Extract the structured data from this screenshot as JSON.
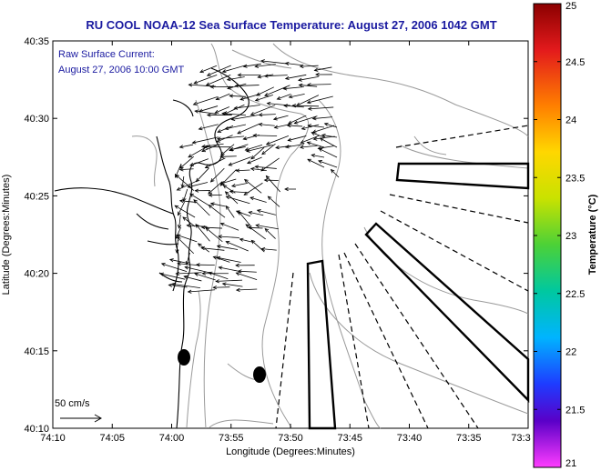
{
  "title": "RU COOL  NOAA-12  Sea Surface Temperature:  August 27, 2006 1042 GMT",
  "annotation": {
    "line1": "Raw Surface Current:",
    "line2": "August 27, 2006 10:00 GMT"
  },
  "scale": {
    "label": "50 cm/s"
  },
  "axes": {
    "xlabel": "Longitude (Degrees:Minutes)",
    "ylabel": "Latitude (Degrees:Minutes)",
    "xticks": [
      "74:10",
      "74:05",
      "74:00",
      "73:55",
      "73:50",
      "73:45",
      "73:40",
      "73:35",
      "73:3"
    ],
    "yticks": [
      "40:35",
      "40:30",
      "40:25",
      "40:20",
      "40:15",
      "40:10"
    ]
  },
  "colorbar": {
    "label": "Temperature (°C)",
    "ticks": [
      "25",
      "24.5",
      "24",
      "23.5",
      "23",
      "22.5",
      "22",
      "21.5",
      "21"
    ],
    "range": [
      21,
      25
    ]
  }
}
